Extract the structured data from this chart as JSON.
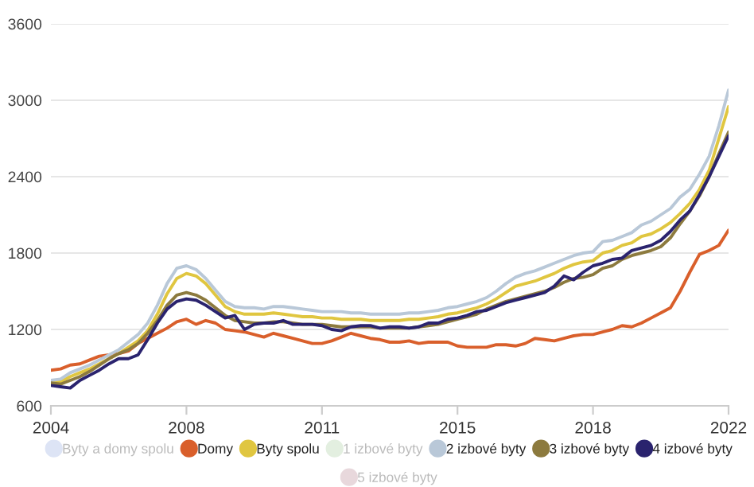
{
  "chart_data": {
    "type": "line",
    "categories": [
      "2004",
      null,
      null,
      null,
      null,
      null,
      null,
      null,
      null,
      null,
      null,
      null,
      null,
      null,
      "2008",
      null,
      null,
      null,
      null,
      null,
      null,
      null,
      null,
      null,
      null,
      null,
      null,
      null,
      "2011",
      null,
      null,
      null,
      null,
      null,
      null,
      null,
      null,
      null,
      null,
      null,
      null,
      null,
      "2015",
      null,
      null,
      null,
      null,
      null,
      null,
      null,
      null,
      null,
      null,
      null,
      null,
      null,
      "2018",
      null,
      null,
      null,
      null,
      null,
      null,
      null,
      null,
      null,
      null,
      null,
      null,
      null,
      "2022"
    ],
    "ylim": [
      600,
      3600
    ],
    "yticks": [
      600,
      1200,
      1800,
      2400,
      3000,
      3600
    ],
    "grid": "y",
    "legend": "bottom",
    "marker": "none",
    "line_style": "solid",
    "series": [
      {
        "name": "Byty a domy spolu",
        "color": "#dde4f5",
        "values": [
          null,
          null,
          null,
          null,
          null,
          null,
          null,
          null,
          null,
          null,
          null,
          null,
          null,
          null,
          null,
          null,
          null,
          null,
          null,
          null,
          null,
          null,
          null,
          null,
          null,
          null,
          null,
          null,
          null,
          null,
          null,
          null,
          null,
          null,
          null,
          null,
          null,
          null,
          null,
          null,
          null,
          null,
          null,
          null,
          null,
          null,
          null,
          null,
          null,
          null,
          null,
          null,
          null,
          null,
          null,
          null,
          null,
          null,
          null,
          null,
          null,
          null,
          null,
          null,
          null,
          null,
          null,
          null,
          null,
          null,
          null
        ]
      },
      {
        "name": "Domy",
        "color": "#d95f2b",
        "values": [
          880,
          890,
          920,
          930,
          960,
          990,
          1000,
          1010,
          1030,
          1090,
          1130,
          1170,
          1210,
          1260,
          1280,
          1240,
          1270,
          1250,
          1200,
          1190,
          1180,
          1160,
          1140,
          1170,
          1150,
          1130,
          1110,
          1090,
          1090,
          1110,
          1140,
          1170,
          1150,
          1130,
          1120,
          1100,
          1100,
          1110,
          1090,
          1100,
          1100,
          1100,
          1070,
          1060,
          1060,
          1060,
          1080,
          1080,
          1070,
          1090,
          1130,
          1120,
          1110,
          1130,
          1150,
          1160,
          1160,
          1180,
          1200,
          1230,
          1220,
          1250,
          1290,
          1330,
          1370,
          1500,
          1650,
          1790,
          1820,
          1860,
          1980
        ]
      },
      {
        "name": "Byty spolu",
        "color": "#e0c640",
        "values": [
          790,
          790,
          830,
          860,
          890,
          930,
          970,
          1010,
          1060,
          1110,
          1190,
          1320,
          1480,
          1600,
          1640,
          1620,
          1560,
          1470,
          1380,
          1340,
          1320,
          1320,
          1320,
          1330,
          1320,
          1310,
          1300,
          1300,
          1290,
          1290,
          1280,
          1280,
          1280,
          1270,
          1270,
          1270,
          1270,
          1280,
          1280,
          1290,
          1300,
          1320,
          1330,
          1350,
          1370,
          1400,
          1440,
          1490,
          1540,
          1560,
          1580,
          1610,
          1640,
          1680,
          1710,
          1730,
          1740,
          1800,
          1820,
          1860,
          1880,
          1930,
          1950,
          1990,
          2040,
          2110,
          2190,
          2300,
          2450,
          2700,
          2950
        ]
      },
      {
        "name": "1 izbové byty",
        "color": "#e3efe0",
        "values": [
          null,
          null,
          null,
          null,
          null,
          null,
          null,
          null,
          null,
          null,
          null,
          null,
          null,
          null,
          null,
          null,
          null,
          null,
          null,
          null,
          null,
          null,
          null,
          null,
          null,
          null,
          null,
          null,
          null,
          null,
          null,
          null,
          null,
          null,
          null,
          null,
          null,
          null,
          null,
          null,
          null,
          null,
          null,
          null,
          null,
          null,
          null,
          null,
          null,
          null,
          null,
          null,
          null,
          null,
          null,
          null,
          null,
          null,
          null,
          null,
          null,
          null,
          null,
          null,
          null,
          null,
          null,
          null,
          null,
          null,
          null
        ]
      },
      {
        "name": "2 izbové byty",
        "color": "#b9c8d8",
        "values": [
          800,
          810,
          860,
          890,
          920,
          960,
          1000,
          1040,
          1100,
          1160,
          1250,
          1390,
          1560,
          1680,
          1700,
          1670,
          1600,
          1510,
          1420,
          1380,
          1370,
          1370,
          1360,
          1380,
          1380,
          1370,
          1360,
          1350,
          1340,
          1340,
          1340,
          1330,
          1330,
          1320,
          1320,
          1320,
          1320,
          1330,
          1330,
          1340,
          1350,
          1370,
          1380,
          1400,
          1420,
          1450,
          1500,
          1560,
          1610,
          1640,
          1660,
          1690,
          1720,
          1750,
          1780,
          1800,
          1810,
          1890,
          1900,
          1930,
          1960,
          2020,
          2050,
          2100,
          2150,
          2240,
          2300,
          2420,
          2560,
          2800,
          3080
        ]
      },
      {
        "name": "3 izbové byty",
        "color": "#8c7a3e",
        "values": [
          780,
          770,
          800,
          830,
          870,
          920,
          970,
          1010,
          1040,
          1090,
          1170,
          1270,
          1390,
          1470,
          1490,
          1470,
          1430,
          1370,
          1310,
          1270,
          1260,
          1250,
          1250,
          1260,
          1260,
          1250,
          1240,
          1240,
          1240,
          1230,
          1220,
          1220,
          1220,
          1220,
          1210,
          1210,
          1210,
          1210,
          1220,
          1230,
          1240,
          1260,
          1280,
          1300,
          1320,
          1360,
          1390,
          1420,
          1440,
          1460,
          1480,
          1500,
          1530,
          1570,
          1600,
          1610,
          1630,
          1680,
          1700,
          1750,
          1780,
          1800,
          1820,
          1850,
          1920,
          2030,
          2130,
          2250,
          2400,
          2580,
          2750
        ]
      },
      {
        "name": "4 izbové byty",
        "color": "#2a236e",
        "values": [
          760,
          750,
          740,
          800,
          840,
          880,
          930,
          970,
          970,
          1000,
          1120,
          1250,
          1360,
          1420,
          1440,
          1430,
          1390,
          1340,
          1290,
          1310,
          1200,
          1240,
          1250,
          1250,
          1270,
          1240,
          1240,
          1240,
          1230,
          1200,
          1190,
          1220,
          1230,
          1230,
          1210,
          1220,
          1220,
          1210,
          1220,
          1250,
          1250,
          1280,
          1290,
          1310,
          1340,
          1350,
          1380,
          1410,
          1430,
          1450,
          1470,
          1490,
          1540,
          1620,
          1590,
          1650,
          1700,
          1720,
          1750,
          1760,
          1820,
          1840,
          1860,
          1900,
          1970,
          2060,
          2130,
          2260,
          2400,
          2560,
          2720
        ]
      },
      {
        "name": "5 izbové byty",
        "color": "#e8d8dc",
        "values": [
          null,
          null,
          null,
          null,
          null,
          null,
          null,
          null,
          null,
          null,
          null,
          null,
          null,
          null,
          null,
          null,
          null,
          null,
          null,
          null,
          null,
          null,
          null,
          null,
          null,
          null,
          null,
          null,
          null,
          null,
          null,
          null,
          null,
          null,
          null,
          null,
          null,
          null,
          null,
          null,
          null,
          null,
          null,
          null,
          null,
          null,
          null,
          null,
          null,
          null,
          null,
          null,
          null,
          null,
          null,
          null,
          null,
          null,
          null,
          null,
          null,
          null,
          null,
          null,
          null,
          null,
          null,
          null,
          null,
          null,
          null
        ]
      }
    ]
  }
}
